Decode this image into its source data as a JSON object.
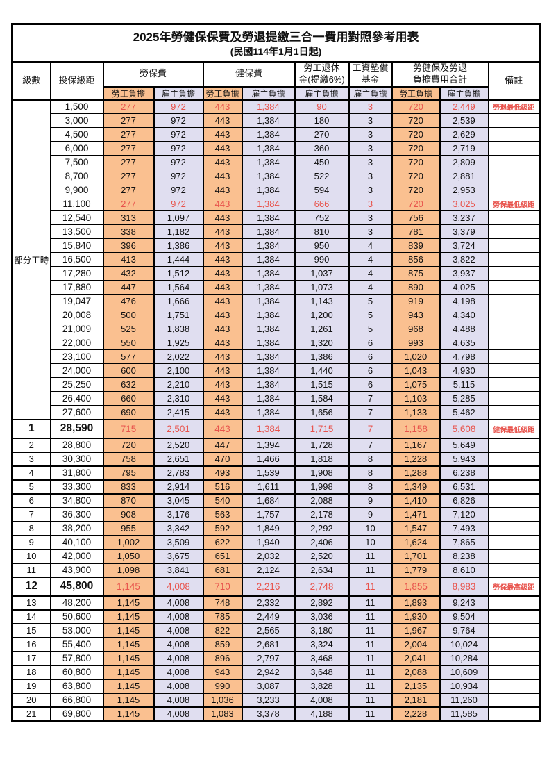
{
  "title": "2025年勞健保保費及勞退提繳三合一費用對照參考用表",
  "subtitle": "(民國114年1月1日起)",
  "colors": {
    "employee_bg": "#FAC090",
    "employer_bg": "#E0DEF0",
    "highlight_red": "#E8534C",
    "border": "#000000"
  },
  "header": {
    "level": "級數",
    "bracket": "投保級距",
    "labor_ins": "勞保費",
    "health_ins": "健保費",
    "pension_line1": "勞工退休",
    "pension_line2": "金(提繳6%)",
    "wage_fund_line1": "工資墊償",
    "wage_fund_line2": "基金",
    "total_line1": "勞健保及勞退",
    "total_line2": "負擔費用合計",
    "remark": "備註",
    "employee": "勞工負擔",
    "employer": "雇主負擔"
  },
  "part_time_label": "部分工時",
  "part_time_rowspan": 23,
  "rows": [
    {
      "level": null,
      "bracket": "1,500",
      "values": [
        "277",
        "972",
        "443",
        "1,384",
        "90",
        "3",
        "720",
        "2,449"
      ],
      "remark": "勞退最低級距",
      "style": "red"
    },
    {
      "level": null,
      "bracket": "3,000",
      "values": [
        "277",
        "972",
        "443",
        "1,384",
        "180",
        "3",
        "720",
        "2,539"
      ]
    },
    {
      "level": null,
      "bracket": "4,500",
      "values": [
        "277",
        "972",
        "443",
        "1,384",
        "270",
        "3",
        "720",
        "2,629"
      ]
    },
    {
      "level": null,
      "bracket": "6,000",
      "values": [
        "277",
        "972",
        "443",
        "1,384",
        "360",
        "3",
        "720",
        "2,719"
      ]
    },
    {
      "level": null,
      "bracket": "7,500",
      "values": [
        "277",
        "972",
        "443",
        "1,384",
        "450",
        "3",
        "720",
        "2,809"
      ]
    },
    {
      "level": null,
      "bracket": "8,700",
      "values": [
        "277",
        "972",
        "443",
        "1,384",
        "522",
        "3",
        "720",
        "2,881"
      ]
    },
    {
      "level": null,
      "bracket": "9,900",
      "values": [
        "277",
        "972",
        "443",
        "1,384",
        "594",
        "3",
        "720",
        "2,953"
      ]
    },
    {
      "level": null,
      "bracket": "11,100",
      "values": [
        "277",
        "972",
        "443",
        "1,384",
        "666",
        "3",
        "720",
        "3,025"
      ],
      "remark": "勞保最低級距",
      "style": "red"
    },
    {
      "level": null,
      "bracket": "12,540",
      "values": [
        "313",
        "1,097",
        "443",
        "1,384",
        "752",
        "3",
        "756",
        "3,237"
      ]
    },
    {
      "level": null,
      "bracket": "13,500",
      "values": [
        "338",
        "1,182",
        "443",
        "1,384",
        "810",
        "3",
        "781",
        "3,379"
      ]
    },
    {
      "level": null,
      "bracket": "15,840",
      "values": [
        "396",
        "1,386",
        "443",
        "1,384",
        "950",
        "4",
        "839",
        "3,724"
      ]
    },
    {
      "level": null,
      "bracket": "16,500",
      "values": [
        "413",
        "1,444",
        "443",
        "1,384",
        "990",
        "4",
        "856",
        "3,822"
      ]
    },
    {
      "level": null,
      "bracket": "17,280",
      "values": [
        "432",
        "1,512",
        "443",
        "1,384",
        "1,037",
        "4",
        "875",
        "3,937"
      ]
    },
    {
      "level": null,
      "bracket": "17,880",
      "values": [
        "447",
        "1,564",
        "443",
        "1,384",
        "1,073",
        "4",
        "890",
        "4,025"
      ]
    },
    {
      "level": null,
      "bracket": "19,047",
      "values": [
        "476",
        "1,666",
        "443",
        "1,384",
        "1,143",
        "5",
        "919",
        "4,198"
      ]
    },
    {
      "level": null,
      "bracket": "20,008",
      "values": [
        "500",
        "1,751",
        "443",
        "1,384",
        "1,200",
        "5",
        "943",
        "4,340"
      ]
    },
    {
      "level": null,
      "bracket": "21,009",
      "values": [
        "525",
        "1,838",
        "443",
        "1,384",
        "1,261",
        "5",
        "968",
        "4,488"
      ]
    },
    {
      "level": null,
      "bracket": "22,000",
      "values": [
        "550",
        "1,925",
        "443",
        "1,384",
        "1,320",
        "6",
        "993",
        "4,635"
      ]
    },
    {
      "level": null,
      "bracket": "23,100",
      "values": [
        "577",
        "2,022",
        "443",
        "1,384",
        "1,386",
        "6",
        "1,020",
        "4,798"
      ]
    },
    {
      "level": null,
      "bracket": "24,000",
      "values": [
        "600",
        "2,100",
        "443",
        "1,384",
        "1,440",
        "6",
        "1,043",
        "4,930"
      ]
    },
    {
      "level": null,
      "bracket": "25,250",
      "values": [
        "632",
        "2,210",
        "443",
        "1,384",
        "1,515",
        "6",
        "1,075",
        "5,115"
      ]
    },
    {
      "level": null,
      "bracket": "26,400",
      "values": [
        "660",
        "2,310",
        "443",
        "1,384",
        "1,584",
        "7",
        "1,103",
        "5,285"
      ]
    },
    {
      "level": null,
      "bracket": "27,600",
      "values": [
        "690",
        "2,415",
        "443",
        "1,384",
        "1,656",
        "7",
        "1,133",
        "5,462"
      ]
    },
    {
      "level": "1",
      "bracket": "28,590",
      "values": [
        "715",
        "2,501",
        "443",
        "1,384",
        "1,715",
        "7",
        "1,158",
        "5,608"
      ],
      "remark": "健保最低級距",
      "style": "redbig"
    },
    {
      "level": "2",
      "bracket": "28,800",
      "values": [
        "720",
        "2,520",
        "447",
        "1,394",
        "1,728",
        "7",
        "1,167",
        "5,649"
      ]
    },
    {
      "level": "3",
      "bracket": "30,300",
      "values": [
        "758",
        "2,651",
        "470",
        "1,466",
        "1,818",
        "8",
        "1,228",
        "5,943"
      ]
    },
    {
      "level": "4",
      "bracket": "31,800",
      "values": [
        "795",
        "2,783",
        "493",
        "1,539",
        "1,908",
        "8",
        "1,288",
        "6,238"
      ]
    },
    {
      "level": "5",
      "bracket": "33,300",
      "values": [
        "833",
        "2,914",
        "516",
        "1,611",
        "1,998",
        "8",
        "1,349",
        "6,531"
      ]
    },
    {
      "level": "6",
      "bracket": "34,800",
      "values": [
        "870",
        "3,045",
        "540",
        "1,684",
        "2,088",
        "9",
        "1,410",
        "6,826"
      ]
    },
    {
      "level": "7",
      "bracket": "36,300",
      "values": [
        "908",
        "3,176",
        "563",
        "1,757",
        "2,178",
        "9",
        "1,471",
        "7,120"
      ]
    },
    {
      "level": "8",
      "bracket": "38,200",
      "values": [
        "955",
        "3,342",
        "592",
        "1,849",
        "2,292",
        "10",
        "1,547",
        "7,493"
      ]
    },
    {
      "level": "9",
      "bracket": "40,100",
      "values": [
        "1,002",
        "3,509",
        "622",
        "1,940",
        "2,406",
        "10",
        "1,624",
        "7,865"
      ]
    },
    {
      "level": "10",
      "bracket": "42,000",
      "values": [
        "1,050",
        "3,675",
        "651",
        "2,032",
        "2,520",
        "11",
        "1,701",
        "8,238"
      ]
    },
    {
      "level": "11",
      "bracket": "43,900",
      "values": [
        "1,098",
        "3,841",
        "681",
        "2,124",
        "2,634",
        "11",
        "1,779",
        "8,610"
      ]
    },
    {
      "level": "12",
      "bracket": "45,800",
      "values": [
        "1,145",
        "4,008",
        "710",
        "2,216",
        "2,748",
        "11",
        "1,855",
        "8,983"
      ],
      "remark": "勞保最高級距",
      "style": "redbig"
    },
    {
      "level": "13",
      "bracket": "48,200",
      "values": [
        "1,145",
        "4,008",
        "748",
        "2,332",
        "2,892",
        "11",
        "1,893",
        "9,243"
      ]
    },
    {
      "level": "14",
      "bracket": "50,600",
      "values": [
        "1,145",
        "4,008",
        "785",
        "2,449",
        "3,036",
        "11",
        "1,930",
        "9,504"
      ]
    },
    {
      "level": "15",
      "bracket": "53,000",
      "values": [
        "1,145",
        "4,008",
        "822",
        "2,565",
        "3,180",
        "11",
        "1,967",
        "9,764"
      ]
    },
    {
      "level": "16",
      "bracket": "55,400",
      "values": [
        "1,145",
        "4,008",
        "859",
        "2,681",
        "3,324",
        "11",
        "2,004",
        "10,024"
      ]
    },
    {
      "level": "17",
      "bracket": "57,800",
      "values": [
        "1,145",
        "4,008",
        "896",
        "2,797",
        "3,468",
        "11",
        "2,041",
        "10,284"
      ]
    },
    {
      "level": "18",
      "bracket": "60,800",
      "values": [
        "1,145",
        "4,008",
        "943",
        "2,942",
        "3,648",
        "11",
        "2,088",
        "10,609"
      ]
    },
    {
      "level": "19",
      "bracket": "63,800",
      "values": [
        "1,145",
        "4,008",
        "990",
        "3,087",
        "3,828",
        "11",
        "2,135",
        "10,934"
      ]
    },
    {
      "level": "20",
      "bracket": "66,800",
      "values": [
        "1,145",
        "4,008",
        "1,036",
        "3,233",
        "4,008",
        "11",
        "2,181",
        "11,260"
      ]
    },
    {
      "level": "21",
      "bracket": "69,800",
      "values": [
        "1,145",
        "4,008",
        "1,083",
        "3,378",
        "4,188",
        "11",
        "2,228",
        "11,585"
      ]
    }
  ],
  "column_styles": [
    "org",
    "lav",
    "org",
    "lav",
    "lav",
    "lav",
    "org",
    "lav"
  ]
}
